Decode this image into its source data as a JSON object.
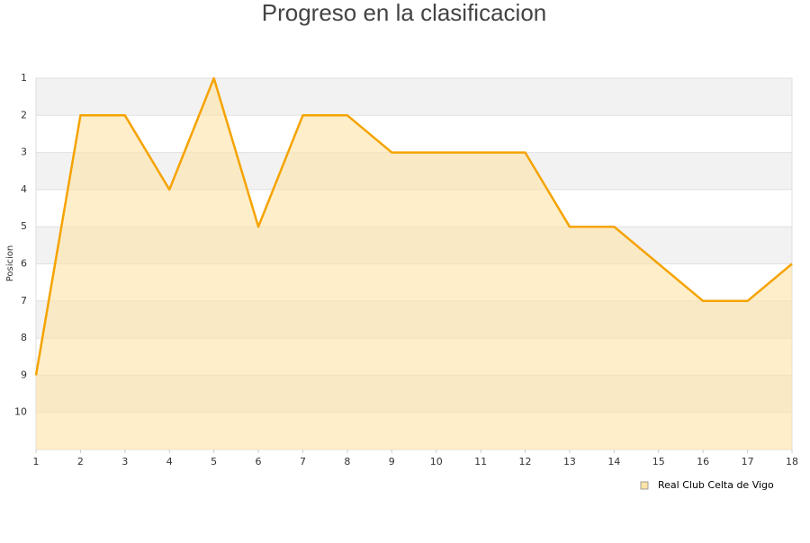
{
  "chart_data": {
    "type": "area",
    "title": "Progreso en la clasificacion",
    "y_label": "Posicion",
    "x": [
      1,
      2,
      3,
      4,
      5,
      6,
      7,
      8,
      9,
      10,
      11,
      12,
      13,
      14,
      15,
      16,
      17,
      18
    ],
    "xlim": [
      1,
      18
    ],
    "xticks": [
      1,
      2,
      3,
      4,
      5,
      6,
      7,
      8,
      9,
      10,
      11,
      12,
      13,
      14,
      15,
      16,
      17,
      18
    ],
    "ylim": [
      11,
      1
    ],
    "yticks": [
      1,
      2,
      3,
      4,
      5,
      6,
      7,
      8,
      9,
      10
    ],
    "series": [
      {
        "name": "Real Club Celta de Vigo",
        "color": "#f5a300",
        "fill": "#ffe3a6",
        "values": [
          9,
          2,
          2,
          4,
          1,
          5,
          2,
          2,
          3,
          3,
          3,
          3,
          5,
          5,
          6,
          7,
          7,
          6
        ]
      }
    ],
    "grid": true,
    "legend": "bottom-right"
  }
}
